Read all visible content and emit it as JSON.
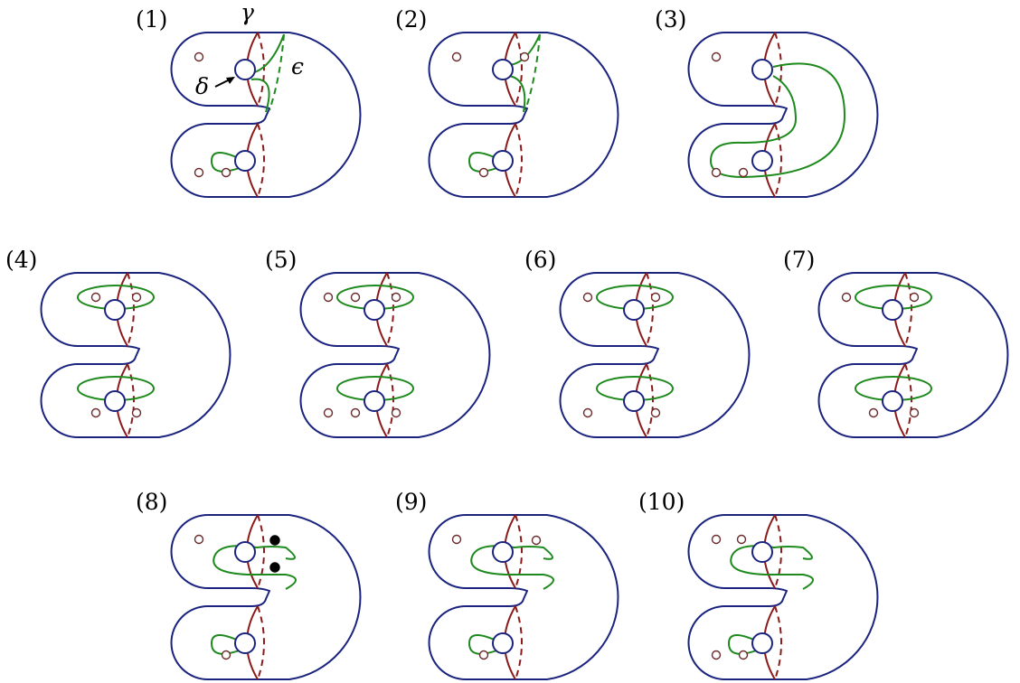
{
  "colors": {
    "surface": "#1a237e",
    "meridian": "#8b1a1a",
    "curve": "#1e8a1e",
    "puncture": "#6b2a2a",
    "marked_point": "#000000"
  },
  "symbols": {
    "gamma": "γ",
    "delta": "δ",
    "epsilon": "ϵ"
  },
  "panels": [
    {
      "id": "1",
      "label": "(1)"
    },
    {
      "id": "2",
      "label": "(2)"
    },
    {
      "id": "3",
      "label": "(3)"
    },
    {
      "id": "4",
      "label": "(4)"
    },
    {
      "id": "5",
      "label": "(5)"
    },
    {
      "id": "6",
      "label": "(6)"
    },
    {
      "id": "7",
      "label": "(7)"
    },
    {
      "id": "8",
      "label": "(8)"
    },
    {
      "id": "9",
      "label": "(9)"
    },
    {
      "id": "10",
      "label": "(10)"
    }
  ]
}
